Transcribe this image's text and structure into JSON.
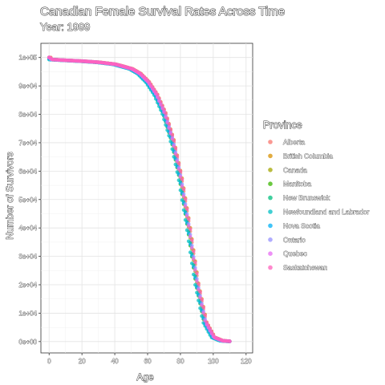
{
  "chart_data": {
    "type": "scatter",
    "title": "Canadian Female Survival Rates Across Time",
    "subtitle": "Year: 1999",
    "xlabel": "Age",
    "ylabel": "Number of Survivors",
    "xlim": [
      -5,
      124
    ],
    "ylim": [
      -4000,
      105000
    ],
    "x_ticks": [
      0,
      20,
      40,
      60,
      80,
      100,
      120
    ],
    "x_tick_labels": [
      "0",
      "20",
      "40",
      "60",
      "80",
      "100",
      "120"
    ],
    "y_ticks": [
      0,
      10000,
      20000,
      30000,
      40000,
      50000,
      60000,
      70000,
      80000,
      90000,
      100000
    ],
    "y_tick_labels": [
      "0e+00",
      "1e+04",
      "2e+04",
      "3e+04",
      "4e+04",
      "5e+04",
      "6e+04",
      "7e+04",
      "8e+04",
      "9e+04",
      "1e+05"
    ],
    "grid": true,
    "legend": {
      "title": "Province",
      "position": "right",
      "entries": [
        "Alberta",
        "British Columbia",
        "Canada",
        "Manitoba",
        "New Brunswick",
        "Newfoundland and Labrador",
        "Nova Scotia",
        "Ontario",
        "Quebec",
        "Saskatchewan"
      ]
    },
    "colors": {
      "Alberta": "#F8766D",
      "British Columbia": "#D89000",
      "Canada": "#A3A500",
      "Manitoba": "#39B600",
      "New Brunswick": "#00BF7D",
      "Newfoundland and Labrador": "#00BFC4",
      "Nova Scotia": "#00B0F6",
      "Ontario": "#9590FF",
      "Quebec": "#E76BF3",
      "Saskatchewan": "#FF62BC"
    },
    "age_range": [
      0,
      110
    ],
    "series": [
      {
        "name": "Alberta",
        "age_shift": 0.7
      },
      {
        "name": "British Columbia",
        "age_shift": 1.0
      },
      {
        "name": "Canada",
        "age_shift": 0.1
      },
      {
        "name": "Manitoba",
        "age_shift": -0.6
      },
      {
        "name": "New Brunswick",
        "age_shift": -0.3
      },
      {
        "name": "Newfoundland and Labrador",
        "age_shift": -1.2
      },
      {
        "name": "Nova Scotia",
        "age_shift": -0.5
      },
      {
        "name": "Ontario",
        "age_shift": 0.4
      },
      {
        "name": "Quebec",
        "age_shift": 0.2
      },
      {
        "name": "Saskatchewan",
        "age_shift": 0.9
      }
    ],
    "survival_curve": {
      "ages": [
        0,
        1,
        10,
        20,
        30,
        40,
        50,
        55,
        60,
        65,
        70,
        75,
        80,
        85,
        90,
        95,
        100,
        105,
        110
      ],
      "survivors": [
        100000,
        99300,
        99000,
        98700,
        98300,
        97600,
        96000,
        94300,
        91400,
        87000,
        80500,
        71000,
        57500,
        40000,
        20500,
        6800,
        1500,
        300,
        60
      ]
    }
  }
}
